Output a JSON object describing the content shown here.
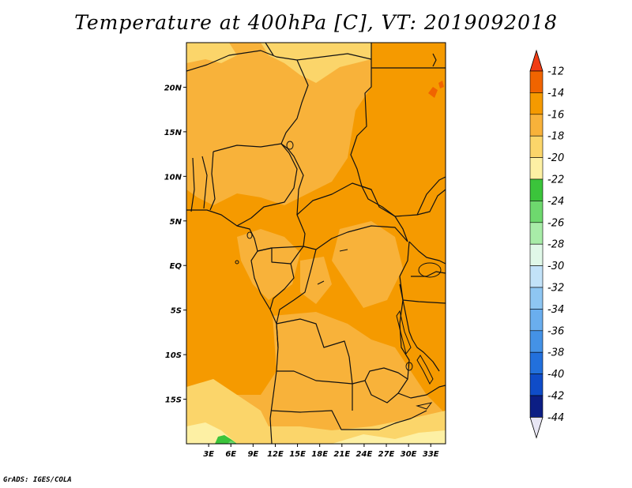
{
  "title": "Temperature at 400hPa [C], VT: 2019092018",
  "credit": "GrADS: IGES/COLA",
  "map": {
    "lon_range": [
      0,
      35
    ],
    "lat_range": [
      -20,
      25
    ],
    "x_ticks": [
      "3E",
      "6E",
      "9E",
      "12E",
      "15E",
      "18E",
      "21E",
      "24E",
      "27E",
      "30E",
      "33E"
    ],
    "y_ticks": [
      "20N",
      "15N",
      "10N",
      "5N",
      "EQ",
      "5S",
      "10S",
      "15S"
    ]
  },
  "colorbar": {
    "labels": [
      "-12",
      "-14",
      "-16",
      "-18",
      "-20",
      "-22",
      "-24",
      "-26",
      "-28",
      "-30",
      "-32",
      "-34",
      "-36",
      "-38",
      "-40",
      "-42",
      "-44"
    ],
    "top_arrow_color": "#f03c14",
    "bottom_arrow_color": "#e8e6f4",
    "colors": [
      "#f06400",
      "#f59a00",
      "#f8b23a",
      "#fbd56a",
      "#fdf0a4",
      "#3bc43b",
      "#6ed86e",
      "#a8eca8",
      "#e0f8e8",
      "#c2e2f8",
      "#8ec6f2",
      "#6aaeee",
      "#4492e6",
      "#2270dc",
      "#0f4cc8",
      "#0c1e84"
    ]
  }
}
